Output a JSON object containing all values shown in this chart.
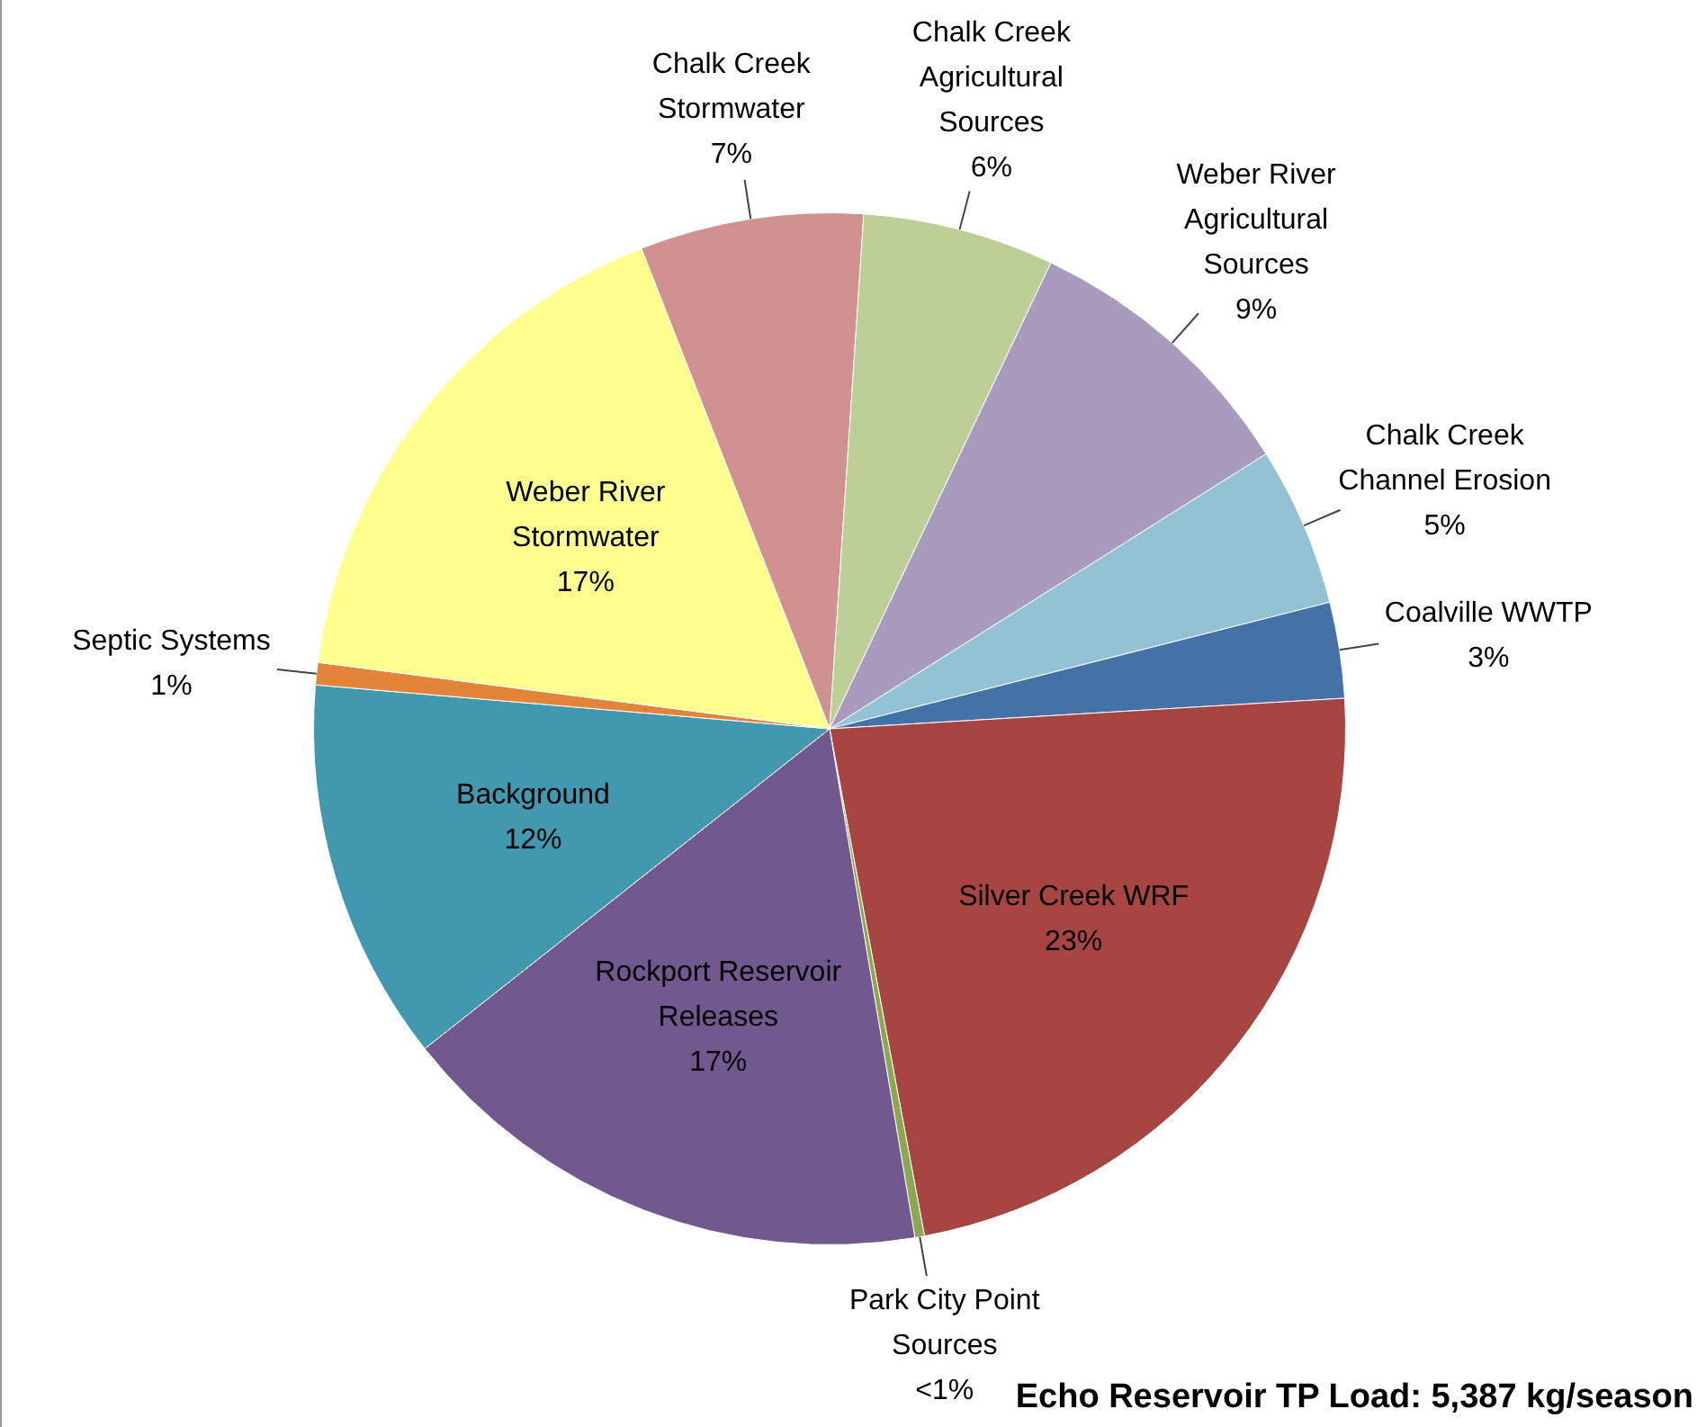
{
  "chart_data": {
    "type": "pie",
    "categories": [
      "Chalk Creek Stormwater",
      "Chalk Creek Agricultural Sources",
      "Weber River Agricultural Sources",
      "Chalk Creek Channel Erosion",
      "Coalville WWTP",
      "Silver Creek WRF",
      "Park City Point Sources",
      "Rockport Reservoir Releases",
      "Background",
      "Septic Systems",
      "Weber River Stormwater"
    ],
    "values": [
      7,
      6,
      9,
      5,
      3,
      23,
      0.3,
      17,
      12,
      0.7,
      17
    ],
    "value_labels": [
      "7%",
      "6%",
      "9%",
      "5%",
      "3%",
      "23%",
      "<1%",
      "17%",
      "12%",
      "1%",
      "17%"
    ],
    "colors": [
      "#d09190",
      "#bbcf96",
      "#a99bbd",
      "#93c3d2",
      "#4472a8",
      "#a64541",
      "#8da750",
      "#71588f",
      "#4198af",
      "#e2853a",
      "#ffff8f"
    ],
    "annotations": [
      "Echo Reservoir TP Load: 5,387 kg/season"
    ],
    "legend": false
  }
}
